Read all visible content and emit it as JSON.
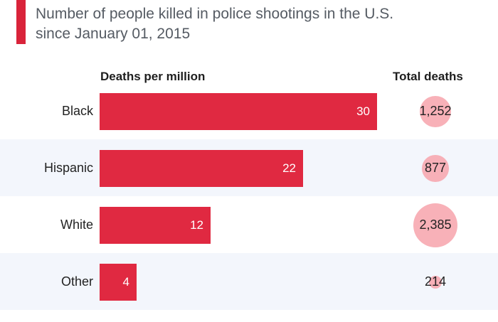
{
  "header": {
    "subtitle_line1": "Number of people killed in police shootings in the U.S.",
    "subtitle_line2": "since January 01, 2015"
  },
  "columns": {
    "left": "Deaths per million",
    "right": "Total deaths"
  },
  "colors": {
    "accent": "#d9233a",
    "bar": "#e02941",
    "bubble": "#f7a3ac",
    "row_alt": "#f3f6fc"
  },
  "chart_data": {
    "type": "bar",
    "orientation": "horizontal",
    "categories": [
      "Black",
      "Hispanic",
      "White",
      "Other"
    ],
    "series": [
      {
        "name": "Deaths per million",
        "values": [
          30,
          22,
          12,
          4
        ]
      },
      {
        "name": "Total deaths",
        "values": [
          1252,
          877,
          2385,
          214
        ]
      }
    ],
    "value_labels": [
      "30",
      "22",
      "12",
      "4"
    ],
    "total_labels": [
      "1,252",
      "877",
      "2,385",
      "214"
    ],
    "xlim": [
      0,
      30
    ],
    "grid": false,
    "legend": "none"
  }
}
